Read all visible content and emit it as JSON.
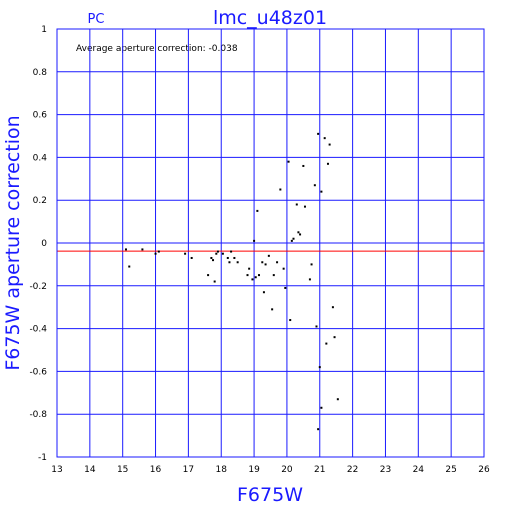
{
  "chart_data": {
    "type": "scatter",
    "title": "lmc_u48z01",
    "subtitle": "PC",
    "xlabel": "F675W",
    "ylabel": "F675W aperture correction",
    "annotation": "Average aperture correction: -0.038",
    "xlim": [
      13,
      26
    ],
    "ylim": [
      -1,
      1
    ],
    "x_ticks": [
      "13",
      "14",
      "15",
      "16",
      "17",
      "18",
      "19",
      "20",
      "21",
      "22",
      "23",
      "24",
      "25",
      "26"
    ],
    "y_ticks": [
      "-1",
      "-0.8",
      "-0.6",
      "-0.4",
      "-0.2",
      "0",
      "0.2",
      "0.4",
      "0.6",
      "0.8",
      "1"
    ],
    "grid": true,
    "reference_lines": [
      {
        "y": 0,
        "color": "#1a1aff"
      },
      {
        "y": -0.038,
        "color": "#ff0000"
      }
    ],
    "series": [
      {
        "points": [
          [
            15.1,
            -0.03
          ],
          [
            15.2,
            -0.11
          ],
          [
            15.6,
            -0.03
          ],
          [
            16.0,
            -0.05
          ],
          [
            16.1,
            -0.04
          ],
          [
            16.9,
            -0.05
          ],
          [
            17.1,
            -0.07
          ],
          [
            17.6,
            -0.15
          ],
          [
            17.7,
            -0.07
          ],
          [
            17.75,
            -0.08
          ],
          [
            17.8,
            -0.18
          ],
          [
            17.85,
            -0.05
          ],
          [
            17.9,
            -0.04
          ],
          [
            18.05,
            -0.05
          ],
          [
            18.2,
            -0.07
          ],
          [
            18.25,
            -0.09
          ],
          [
            18.3,
            -0.04
          ],
          [
            18.4,
            -0.07
          ],
          [
            18.5,
            -0.09
          ],
          [
            18.8,
            -0.15
          ],
          [
            18.85,
            -0.12
          ],
          [
            18.95,
            -0.17
          ],
          [
            19.0,
            0.01
          ],
          [
            19.05,
            -0.16
          ],
          [
            19.1,
            0.15
          ],
          [
            19.15,
            -0.15
          ],
          [
            19.25,
            -0.09
          ],
          [
            19.3,
            -0.23
          ],
          [
            19.35,
            -0.1
          ],
          [
            19.45,
            -0.06
          ],
          [
            19.55,
            -0.31
          ],
          [
            19.6,
            -0.15
          ],
          [
            19.7,
            -0.09
          ],
          [
            19.8,
            0.25
          ],
          [
            19.9,
            -0.12
          ],
          [
            19.95,
            -0.21
          ],
          [
            20.05,
            0.38
          ],
          [
            20.1,
            -0.36
          ],
          [
            20.15,
            0.01
          ],
          [
            20.2,
            0.02
          ],
          [
            20.3,
            0.18
          ],
          [
            20.35,
            0.05
          ],
          [
            20.4,
            0.04
          ],
          [
            20.5,
            0.36
          ],
          [
            20.55,
            0.17
          ],
          [
            20.7,
            -0.17
          ],
          [
            20.75,
            -0.1
          ],
          [
            20.85,
            0.27
          ],
          [
            20.9,
            -0.39
          ],
          [
            20.95,
            -0.87
          ],
          [
            20.95,
            0.51
          ],
          [
            21.0,
            -0.58
          ],
          [
            21.05,
            0.24
          ],
          [
            21.05,
            -0.77
          ],
          [
            21.15,
            0.49
          ],
          [
            21.2,
            -0.47
          ],
          [
            21.25,
            0.37
          ],
          [
            21.3,
            0.46
          ],
          [
            21.4,
            -0.3
          ],
          [
            21.45,
            -0.44
          ],
          [
            21.55,
            -0.73
          ]
        ]
      }
    ]
  }
}
